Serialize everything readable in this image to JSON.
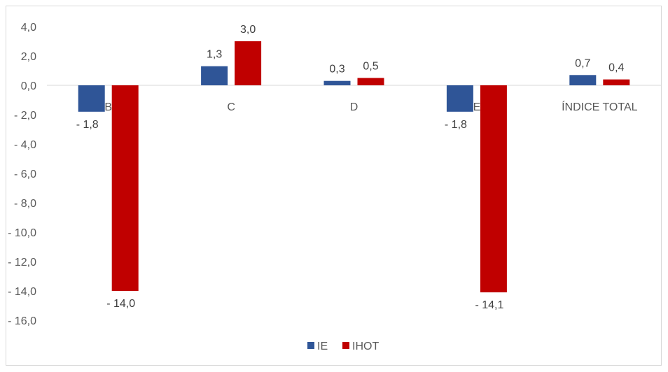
{
  "chart_data": {
    "type": "bar",
    "categories": [
      "B",
      "C",
      "D",
      "E",
      "ÍNDICE TOTAL"
    ],
    "series": [
      {
        "name": "IE",
        "color": "#2f5597",
        "values": [
          -1.8,
          1.3,
          0.3,
          -1.8,
          0.7
        ],
        "labels": [
          "- 1,8",
          "1,3",
          "0,3",
          "- 1,8",
          "0,7"
        ]
      },
      {
        "name": "IHOT",
        "color": "#c00000",
        "values": [
          -14.0,
          3.0,
          0.5,
          -14.1,
          0.4
        ],
        "labels": [
          "- 14,0",
          "3,0",
          "0,5",
          "- 14,1",
          "0,4"
        ]
      }
    ],
    "yticks": [
      4,
      2,
      0,
      -2,
      -4,
      -6,
      -8,
      -10,
      -12,
      -14,
      -16
    ],
    "ytick_labels": [
      "4,0",
      "2,0",
      "0,0",
      "- 2,0",
      "- 4,0",
      "- 6,0",
      "- 8,0",
      "- 10,0",
      "- 12,0",
      "- 14,0",
      "- 16,0"
    ],
    "ylim": [
      -16,
      4
    ],
    "grid": false,
    "legend_position": "bottom"
  }
}
